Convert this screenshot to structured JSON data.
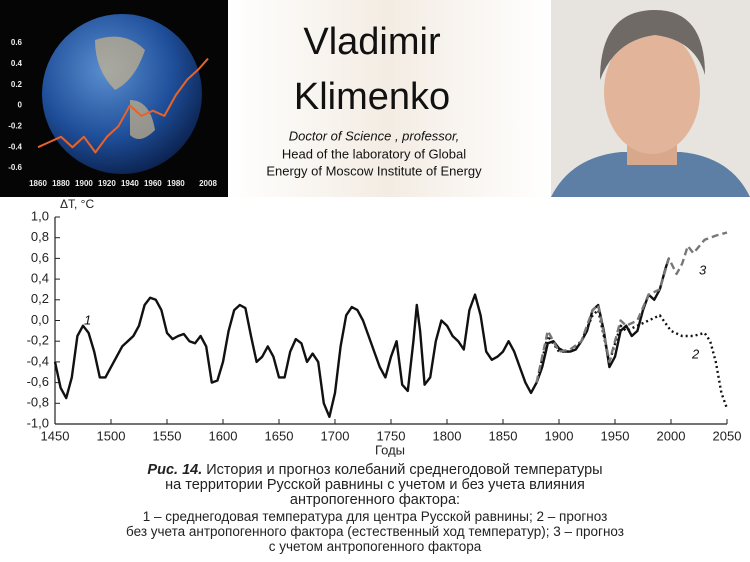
{
  "header": {
    "name": [
      "Vladimir",
      "Klimenko"
    ],
    "position": [
      "Doctor of Science , professor,",
      "Head of the laboratory of Global",
      "Energy of Moscow Institute of Energy"
    ]
  },
  "chart_data": [
    {
      "type": "line",
      "color": "#e8632a",
      "x": [
        1860,
        1870,
        1880,
        1890,
        1900,
        1910,
        1920,
        1930,
        1940,
        1950,
        1960,
        1970,
        1980,
        1990,
        2000,
        2008
      ],
      "values": [
        -0.4,
        -0.35,
        -0.3,
        -0.4,
        -0.3,
        -0.45,
        -0.3,
        -0.2,
        0.0,
        -0.1,
        -0.05,
        -0.1,
        0.1,
        0.25,
        0.35,
        0.45
      ],
      "xlim": [
        1860,
        2008
      ],
      "xticks": [
        1860,
        1880,
        1900,
        1920,
        1940,
        1960,
        1980,
        2008
      ],
      "ylim": [
        -0.6,
        0.6
      ],
      "yticks": [
        0.6,
        0.4,
        0.2,
        0,
        -0.2,
        -0.4,
        -0.6
      ]
    },
    {
      "type": "line",
      "y_label": "ΔT, °C",
      "x_label": "Годы",
      "xlim": [
        1450,
        2050
      ],
      "xticks": [
        1450,
        1500,
        1550,
        1600,
        1650,
        1700,
        1750,
        1800,
        1850,
        1900,
        1950,
        2000,
        2050
      ],
      "ylim": [
        -1.0,
        1.0
      ],
      "yticks": [
        {
          "value": 1.0,
          "label": "1,0"
        },
        {
          "value": 0.8,
          "label": "0,8"
        },
        {
          "value": 0.6,
          "label": "0,6"
        },
        {
          "value": 0.4,
          "label": "0,4"
        },
        {
          "value": 0.2,
          "label": "0,2"
        },
        {
          "value": 0.0,
          "label": "0,0"
        },
        {
          "value": -0.2,
          "label": "-0,2"
        },
        {
          "value": -0.4,
          "label": "-0,4"
        },
        {
          "value": -0.6,
          "label": "-0,6"
        },
        {
          "value": -0.8,
          "label": "-0,8"
        },
        {
          "value": -1.0,
          "label": "-1,0"
        }
      ],
      "series": [
        {
          "name": "1",
          "color": "#111111",
          "style": "solid",
          "x": [
            1450,
            1455,
            1460,
            1465,
            1470,
            1475,
            1480,
            1485,
            1490,
            1495,
            1500,
            1510,
            1520,
            1525,
            1530,
            1535,
            1540,
            1545,
            1550,
            1555,
            1560,
            1565,
            1570,
            1575,
            1580,
            1585,
            1590,
            1595,
            1600,
            1605,
            1610,
            1615,
            1620,
            1625,
            1630,
            1635,
            1640,
            1645,
            1650,
            1655,
            1660,
            1665,
            1670,
            1675,
            1680,
            1685,
            1690,
            1695,
            1700,
            1705,
            1710,
            1715,
            1720,
            1725,
            1730,
            1735,
            1740,
            1745,
            1750,
            1755,
            1760,
            1765,
            1770,
            1773,
            1776,
            1780,
            1785,
            1790,
            1795,
            1800,
            1805,
            1810,
            1815,
            1820,
            1825,
            1830,
            1835,
            1840,
            1845,
            1850,
            1855,
            1860,
            1865,
            1870,
            1875,
            1880,
            1885,
            1890,
            1895,
            1900,
            1905,
            1910,
            1915,
            1920,
            1925,
            1930,
            1935,
            1940,
            1945,
            1950,
            1955,
            1960,
            1965,
            1970,
            1975,
            1980,
            1985,
            1990,
            1995,
            1998
          ],
          "values": [
            -0.4,
            -0.65,
            -0.75,
            -0.55,
            -0.15,
            -0.05,
            -0.12,
            -0.3,
            -0.55,
            -0.55,
            -0.45,
            -0.25,
            -0.15,
            -0.05,
            0.15,
            0.22,
            0.2,
            0.1,
            -0.12,
            -0.18,
            -0.15,
            -0.13,
            -0.2,
            -0.22,
            -0.15,
            -0.25,
            -0.6,
            -0.58,
            -0.4,
            -0.1,
            0.1,
            0.15,
            0.12,
            -0.15,
            -0.4,
            -0.35,
            -0.25,
            -0.35,
            -0.55,
            -0.55,
            -0.3,
            -0.18,
            -0.22,
            -0.4,
            -0.32,
            -0.4,
            -0.8,
            -0.93,
            -0.7,
            -0.25,
            0.05,
            0.13,
            0.1,
            0.0,
            -0.15,
            -0.3,
            -0.45,
            -0.55,
            -0.35,
            -0.2,
            -0.62,
            -0.68,
            -0.2,
            0.15,
            -0.1,
            -0.62,
            -0.55,
            -0.2,
            0.0,
            -0.05,
            -0.15,
            -0.2,
            -0.28,
            0.1,
            0.25,
            0.05,
            -0.3,
            -0.38,
            -0.35,
            -0.3,
            -0.2,
            -0.3,
            -0.45,
            -0.6,
            -0.7,
            -0.6,
            -0.45,
            -0.22,
            -0.2,
            -0.27,
            -0.3,
            -0.3,
            -0.28,
            -0.2,
            -0.1,
            0.1,
            0.15,
            -0.1,
            -0.45,
            -0.35,
            -0.1,
            -0.05,
            -0.15,
            -0.1,
            0.1,
            0.25,
            0.2,
            0.3,
            0.5,
            0.6
          ]
        },
        {
          "name": "2",
          "color": "#111111",
          "style": "dotted",
          "x": [
            1880,
            1890,
            1900,
            1910,
            1920,
            1930,
            1935,
            1945,
            1955,
            1960,
            1970,
            1980,
            1990,
            2000,
            2010,
            2020,
            2030,
            2035,
            2040,
            2045,
            2050
          ],
          "values": [
            -0.6,
            -0.15,
            -0.3,
            -0.3,
            -0.2,
            0.05,
            0.1,
            -0.4,
            -0.05,
            -0.1,
            -0.05,
            0.0,
            0.05,
            -0.1,
            -0.15,
            -0.15,
            -0.12,
            -0.2,
            -0.4,
            -0.7,
            -0.85
          ]
        },
        {
          "name": "3",
          "color": "#777777",
          "style": "dashed",
          "x": [
            1880,
            1890,
            1900,
            1910,
            1920,
            1930,
            1935,
            1945,
            1955,
            1960,
            1970,
            1980,
            1990,
            1998,
            2005,
            2010,
            2015,
            2020,
            2030,
            2040,
            2050
          ],
          "values": [
            -0.6,
            -0.1,
            -0.3,
            -0.28,
            -0.2,
            0.1,
            0.15,
            -0.4,
            0.0,
            -0.05,
            0.0,
            0.25,
            0.3,
            0.6,
            0.45,
            0.55,
            0.72,
            0.65,
            0.78,
            0.82,
            0.85
          ]
        }
      ]
    }
  ],
  "caption": {
    "figure": "Рис. 14.",
    "lines": [
      " История и прогноз колебаний среднегодовой температуры",
      "на территории Русской равнины с учетом и без учета влияния",
      "антропогенного фактора:",
      "1 – среднегодовая температура для центра Русской равнины; 2 – прогноз",
      "без учета антропогенного фактора (естественный ход температур); 3 – прогноз",
      "с учетом антропогенного фактора"
    ]
  }
}
